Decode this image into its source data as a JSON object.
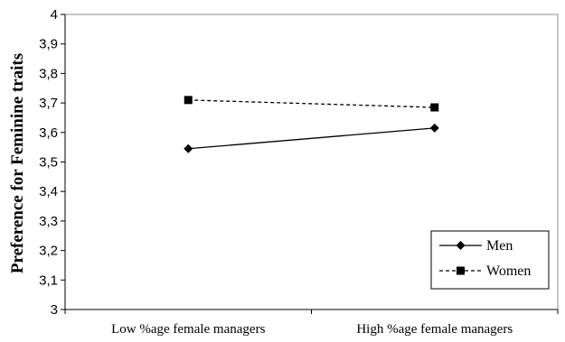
{
  "chart_data": {
    "type": "line",
    "title": "",
    "xlabel": "",
    "ylabel": "Preference for Feminine traits",
    "categories": [
      "Low %age female managers",
      "High %age female managers"
    ],
    "ylim": [
      3,
      4
    ],
    "yticks": [
      "3",
      "3,1",
      "3,2",
      "3,3",
      "3,4",
      "3,5",
      "3,6",
      "3,7",
      "3,8",
      "3,9",
      "4"
    ],
    "grid": false,
    "legend_position": "bottom-right",
    "series": [
      {
        "name": "Men",
        "values": [
          3.545,
          3.615
        ],
        "line_style": "solid",
        "marker": "diamond",
        "color": "#000000"
      },
      {
        "name": "Women",
        "values": [
          3.71,
          3.685
        ],
        "line_style": "dashed",
        "marker": "square",
        "color": "#000000"
      }
    ]
  }
}
